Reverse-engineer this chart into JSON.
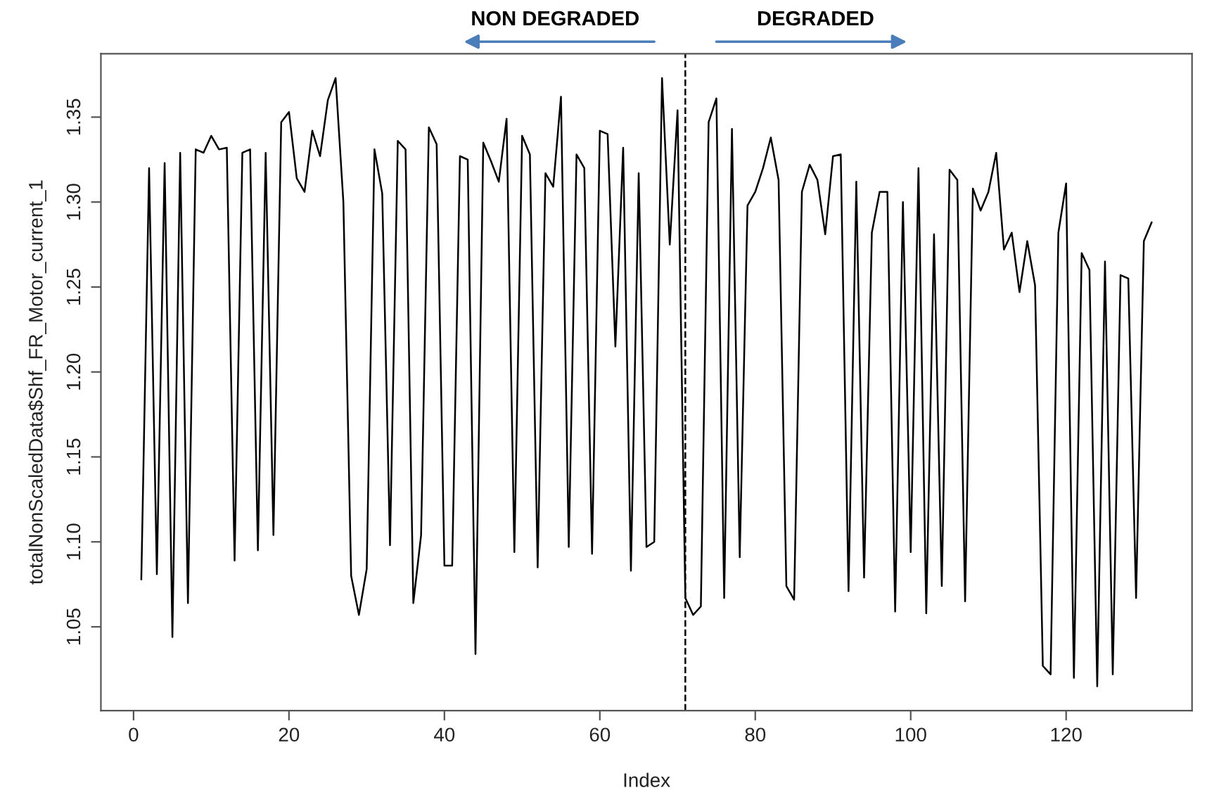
{
  "chart_data": {
    "type": "line",
    "xlabel": "Index",
    "ylabel": "totalNonScaledData$Shf_FR_Motor_current_1",
    "annotations": [
      "NON DEGRADED",
      "DEGRADED"
    ],
    "x": [
      1,
      2,
      3,
      4,
      5,
      6,
      7,
      8,
      9,
      10,
      11,
      12,
      13,
      14,
      15,
      16,
      17,
      18,
      19,
      20,
      21,
      22,
      23,
      24,
      25,
      26,
      27,
      28,
      29,
      30,
      31,
      32,
      33,
      34,
      35,
      36,
      37,
      38,
      39,
      40,
      41,
      42,
      43,
      44,
      45,
      46,
      47,
      48,
      49,
      50,
      51,
      52,
      53,
      54,
      55,
      56,
      57,
      58,
      59,
      60,
      61,
      62,
      63,
      64,
      65,
      66,
      67,
      68,
      69,
      70,
      71,
      72,
      73,
      74,
      75,
      76,
      77,
      78,
      79,
      80,
      81,
      82,
      83,
      84,
      85,
      86,
      87,
      88,
      89,
      90,
      91,
      92,
      93,
      94,
      95,
      96,
      97,
      98,
      99,
      100,
      101,
      102,
      103,
      104,
      105,
      106,
      107,
      108,
      109,
      110,
      111,
      112,
      113,
      114,
      115,
      116,
      117,
      118,
      119,
      120,
      121,
      122,
      123,
      124,
      125,
      126,
      127,
      128,
      129,
      130,
      131
    ],
    "series": [
      {
        "color": "#000000",
        "values": [
          1.078,
          1.32,
          1.081,
          1.323,
          1.044,
          1.329,
          1.064,
          1.331,
          1.329,
          1.339,
          1.331,
          1.332,
          1.089,
          1.329,
          1.331,
          1.095,
          1.329,
          1.104,
          1.347,
          1.353,
          1.314,
          1.306,
          1.342,
          1.327,
          1.36,
          1.373,
          1.3,
          1.08,
          1.057,
          1.084,
          1.331,
          1.305,
          1.098,
          1.336,
          1.331,
          1.064,
          1.104,
          1.344,
          1.334,
          1.086,
          1.086,
          1.327,
          1.325,
          1.034,
          1.335,
          1.324,
          1.312,
          1.349,
          1.094,
          1.339,
          1.328,
          1.085,
          1.317,
          1.309,
          1.362,
          1.097,
          1.328,
          1.32,
          1.093,
          1.342,
          1.34,
          1.215,
          1.332,
          1.083,
          1.317,
          1.097,
          1.1,
          1.373,
          1.275,
          1.354,
          1.067,
          1.057,
          1.062,
          1.347,
          1.361,
          1.067,
          1.343,
          1.091,
          1.298,
          1.306,
          1.32,
          1.338,
          1.313,
          1.074,
          1.066,
          1.306,
          1.322,
          1.313,
          1.281,
          1.327,
          1.328,
          1.071,
          1.312,
          1.079,
          1.282,
          1.306,
          1.306,
          1.059,
          1.3,
          1.094,
          1.32,
          1.058,
          1.281,
          1.074,
          1.319,
          1.313,
          1.065,
          1.308,
          1.295,
          1.306,
          1.329,
          1.272,
          1.282,
          1.247,
          1.277,
          1.251,
          1.027,
          1.022,
          1.282,
          1.311,
          1.02,
          1.27,
          1.26,
          1.015,
          1.265,
          1.022,
          1.257,
          1.255,
          1.067,
          1.277,
          1.288
        ]
      }
    ],
    "xlim": [
      -4.2,
      136.2
    ],
    "ylim": [
      1.0007,
      1.3873
    ],
    "xticks": [
      0,
      20,
      40,
      60,
      80,
      100,
      120
    ],
    "yticks": [
      1.05,
      {
        "value": 1.1,
        "label": "1.10"
      },
      1.15,
      {
        "value": 1.2,
        "label": "1.20"
      },
      1.25,
      {
        "value": 1.3,
        "label": "1.30"
      },
      1.35
    ],
    "ref_lines": [
      {
        "axis": "x",
        "value": 71,
        "color": "#000000",
        "line_style": "dashed"
      }
    ],
    "grid": false,
    "marker": "none",
    "line_style": "solid"
  }
}
